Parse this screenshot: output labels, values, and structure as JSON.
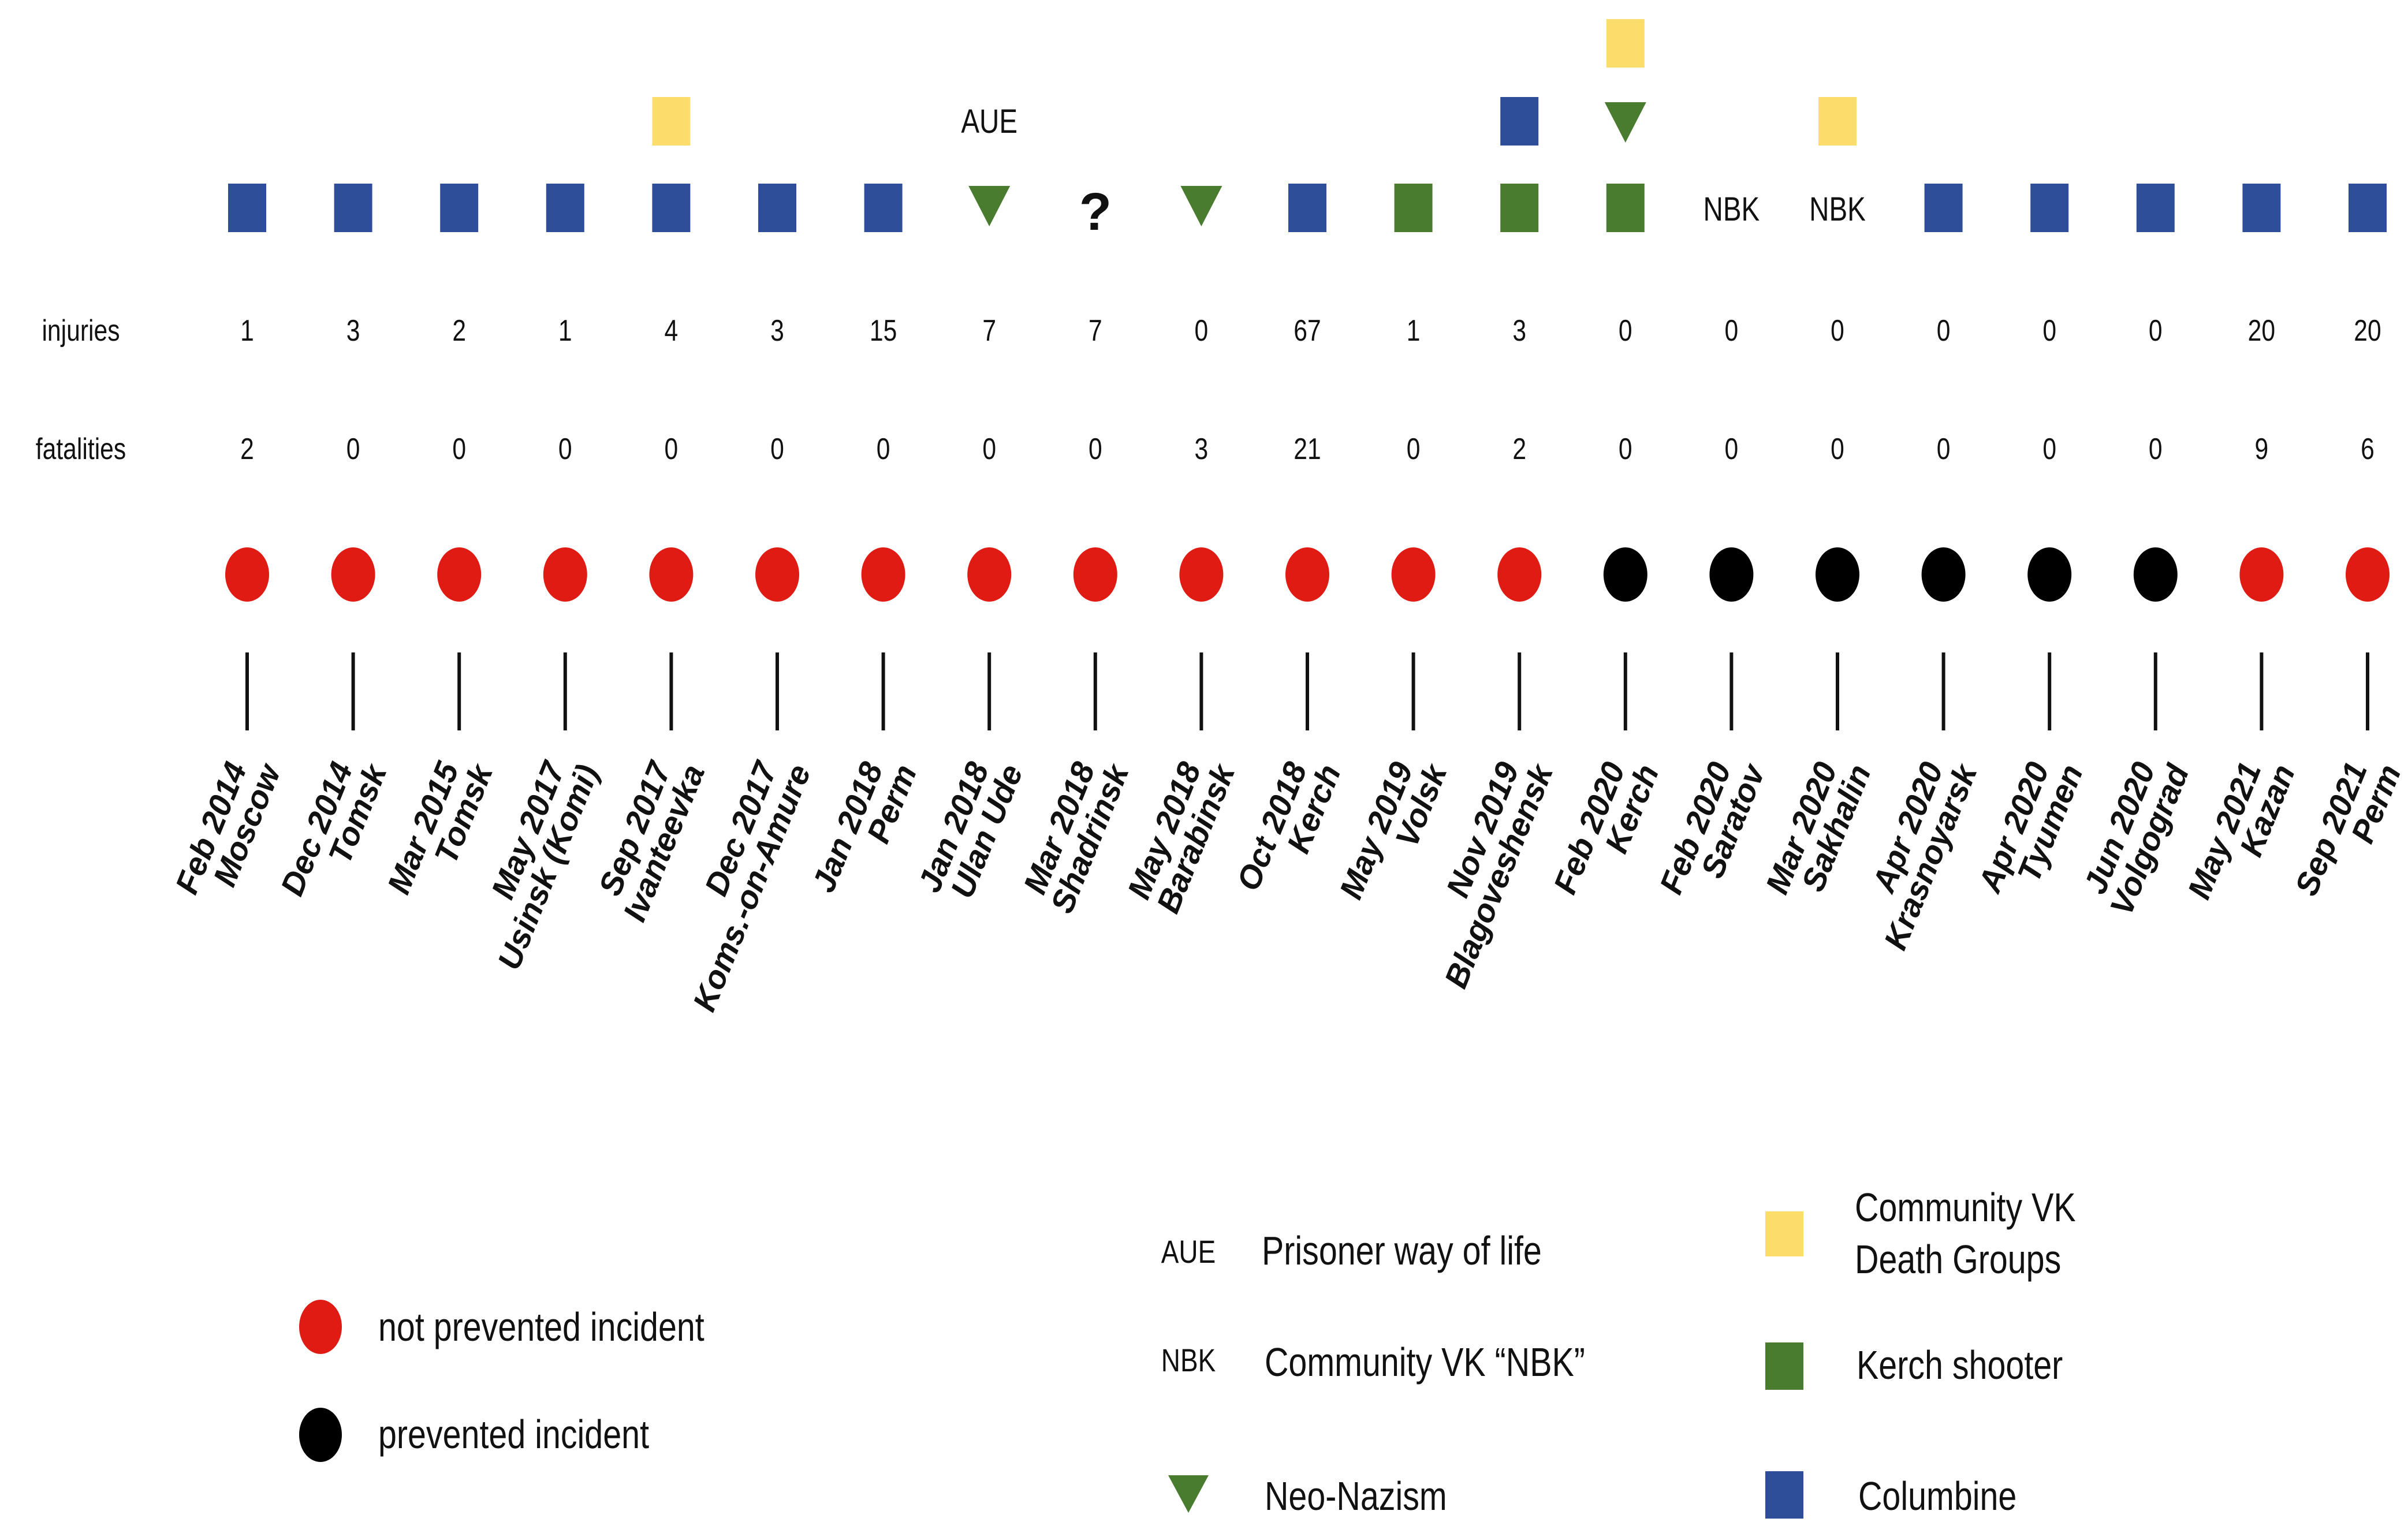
{
  "row_labels": {
    "injuries": "injuries",
    "fatalities": "fatalities"
  },
  "colors": {
    "columbine": "#2e4e9a",
    "kerch": "#4a7c2f",
    "death_groups": "#fcdc6a",
    "neo_nazism": "#4a7c2f",
    "not_prevented": "#e01b14",
    "prevented": "#000000"
  },
  "events": [
    {
      "date": "Feb 2014",
      "place": "Moscow",
      "injuries": "1",
      "fatalities": "2",
      "prevented": false,
      "markers": [
        "columbine"
      ]
    },
    {
      "date": "Dec 2014",
      "place": "Tomsk",
      "injuries": "3",
      "fatalities": "0",
      "prevented": false,
      "markers": [
        "columbine"
      ]
    },
    {
      "date": "Mar 2015",
      "place": "Tomsk",
      "injuries": "2",
      "fatalities": "0",
      "prevented": false,
      "markers": [
        "columbine"
      ]
    },
    {
      "date": "May 2017",
      "place": "Usinsk (Komi)",
      "injuries": "1",
      "fatalities": "0",
      "prevented": false,
      "markers": [
        "columbine"
      ]
    },
    {
      "date": "Sep 2017",
      "place": "Ivanteevka",
      "injuries": "4",
      "fatalities": "0",
      "prevented": false,
      "markers": [
        "columbine",
        "death_groups"
      ]
    },
    {
      "date": "Dec 2017",
      "place": "Koms.-on-Amure",
      "injuries": "3",
      "fatalities": "0",
      "prevented": false,
      "markers": [
        "columbine"
      ]
    },
    {
      "date": "Jan 2018",
      "place": "Perm",
      "injuries": "15",
      "fatalities": "0",
      "prevented": false,
      "markers": [
        "columbine"
      ]
    },
    {
      "date": "Jan 2018",
      "place": "Ulan Ude",
      "injuries": "7",
      "fatalities": "0",
      "prevented": false,
      "markers": [
        "neo_nazism",
        "AUE"
      ]
    },
    {
      "date": "Mar 2018",
      "place": "Shadrinsk",
      "injuries": "7",
      "fatalities": "0",
      "prevented": false,
      "markers": [
        "?"
      ]
    },
    {
      "date": "May 2018",
      "place": "Barabinsk",
      "injuries": "0",
      "fatalities": "3",
      "prevented": false,
      "markers": [
        "neo_nazism"
      ]
    },
    {
      "date": "Oct 2018",
      "place": "Kerch",
      "injuries": "67",
      "fatalities": "21",
      "prevented": false,
      "markers": [
        "columbine"
      ]
    },
    {
      "date": "May 2019",
      "place": "Volsk",
      "injuries": "1",
      "fatalities": "0",
      "prevented": false,
      "markers": [
        "kerch"
      ]
    },
    {
      "date": "Nov 2019",
      "place": "Blagoveshensk",
      "injuries": "3",
      "fatalities": "2",
      "prevented": false,
      "markers": [
        "kerch",
        "columbine"
      ]
    },
    {
      "date": "Feb 2020",
      "place": "Kerch",
      "injuries": "0",
      "fatalities": "0",
      "prevented": true,
      "markers": [
        "kerch",
        "neo_nazism",
        "death_groups"
      ]
    },
    {
      "date": "Feb 2020",
      "place": "Saratov",
      "injuries": "0",
      "fatalities": "0",
      "prevented": true,
      "markers": [
        "NBK"
      ]
    },
    {
      "date": "Mar 2020",
      "place": "Sakhalin",
      "injuries": "0",
      "fatalities": "0",
      "prevented": true,
      "markers": [
        "NBK",
        "death_groups"
      ]
    },
    {
      "date": "Apr 2020",
      "place": "Krasnoyarsk",
      "injuries": "0",
      "fatalities": "0",
      "prevented": true,
      "markers": [
        "columbine"
      ]
    },
    {
      "date": "Apr 2020",
      "place": "Tyumen",
      "injuries": "0",
      "fatalities": "0",
      "prevented": true,
      "markers": [
        "columbine"
      ]
    },
    {
      "date": "Jun 2020",
      "place": "Volgograd",
      "injuries": "0",
      "fatalities": "0",
      "prevented": true,
      "markers": [
        "columbine"
      ]
    },
    {
      "date": "May 2021",
      "place": "Kazan",
      "injuries": "20",
      "fatalities": "9",
      "prevented": false,
      "markers": [
        "columbine"
      ]
    },
    {
      "date": "Sep 2021",
      "place": "Perm",
      "injuries": "20",
      "fatalities": "6",
      "prevented": false,
      "markers": [
        "columbine"
      ]
    }
  ],
  "legend": {
    "not_prevented": "not prevented incident",
    "prevented": "prevented incident",
    "aue_abbr": "AUE",
    "aue_text": "Prisoner way of life",
    "nbk_abbr": "NBK",
    "nbk_text": "Community VK “NBK”",
    "neo_nazism": "Neo-Nazism",
    "death_groups_line1": "Community VK",
    "death_groups_line2": "Death Groups",
    "kerch_shooter": "Kerch shooter",
    "columbine": "Columbine"
  }
}
